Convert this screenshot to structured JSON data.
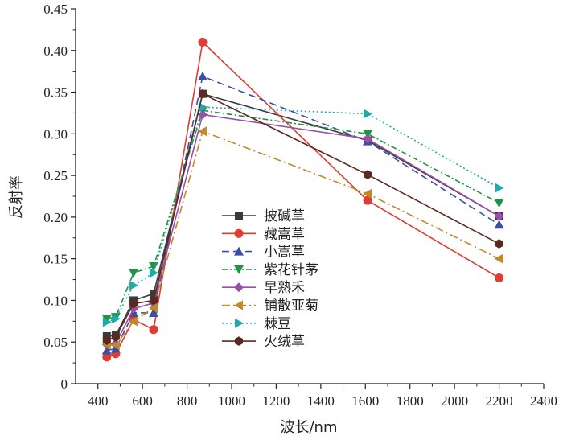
{
  "chart_data": {
    "type": "line",
    "xlabel": "波长/nm",
    "ylabel": "反射率",
    "xlim": [
      300,
      2400
    ],
    "ylim": [
      0,
      0.45
    ],
    "xticks": [
      400,
      600,
      800,
      1000,
      1200,
      1400,
      1600,
      1800,
      2000,
      2200,
      2400
    ],
    "yticks": [
      "0",
      "0.05",
      "0.10",
      "0.15",
      "0.20",
      "0.25",
      "0.30",
      "0.35",
      "0.40",
      "0.45"
    ],
    "legend_position": "center",
    "x": [
      440,
      480,
      560,
      650,
      870,
      1610,
      2200
    ],
    "series": [
      {
        "name": "披碱草",
        "color": "#3a3a3a",
        "marker": "square",
        "dash": "",
        "values": [
          0.057,
          0.058,
          0.1,
          0.108,
          0.348,
          0.292,
          0.201
        ]
      },
      {
        "name": "藏嵩草",
        "color": "#e03c31",
        "marker": "circle",
        "dash": "",
        "values": [
          0.032,
          0.036,
          0.077,
          0.065,
          0.41,
          0.22,
          0.127
        ]
      },
      {
        "name": "小嵩草",
        "color": "#3a4fa3",
        "marker": "triangle-up",
        "dash": "9,5",
        "values": [
          0.04,
          0.042,
          0.085,
          0.085,
          0.369,
          0.291,
          0.191
        ]
      },
      {
        "name": "紫花针茅",
        "color": "#1f9447",
        "marker": "triangle-down",
        "dash": "7,3,2,3",
        "values": [
          0.078,
          0.08,
          0.133,
          0.141,
          0.328,
          0.3,
          0.217
        ]
      },
      {
        "name": "早熟禾",
        "color": "#9a4fa8",
        "marker": "diamond",
        "dash": "",
        "values": [
          0.047,
          0.048,
          0.09,
          0.097,
          0.323,
          0.294,
          0.201
        ]
      },
      {
        "name": "铺散亚菊",
        "color": "#c08a2a",
        "marker": "triangle-left",
        "dash": "10,4,2,4",
        "values": [
          0.047,
          0.046,
          0.075,
          0.091,
          0.303,
          0.228,
          0.15
        ]
      },
      {
        "name": "棘豆",
        "color": "#1fa9a9",
        "marker": "triangle-right",
        "dash": "2,3",
        "values": [
          0.074,
          0.078,
          0.118,
          0.133,
          0.332,
          0.324,
          0.235
        ]
      },
      {
        "name": "火绒草",
        "color": "#5a2a22",
        "marker": "hexagon",
        "dash": "",
        "values": [
          0.052,
          0.056,
          0.096,
          0.1,
          0.348,
          0.251,
          0.168
        ]
      }
    ]
  }
}
